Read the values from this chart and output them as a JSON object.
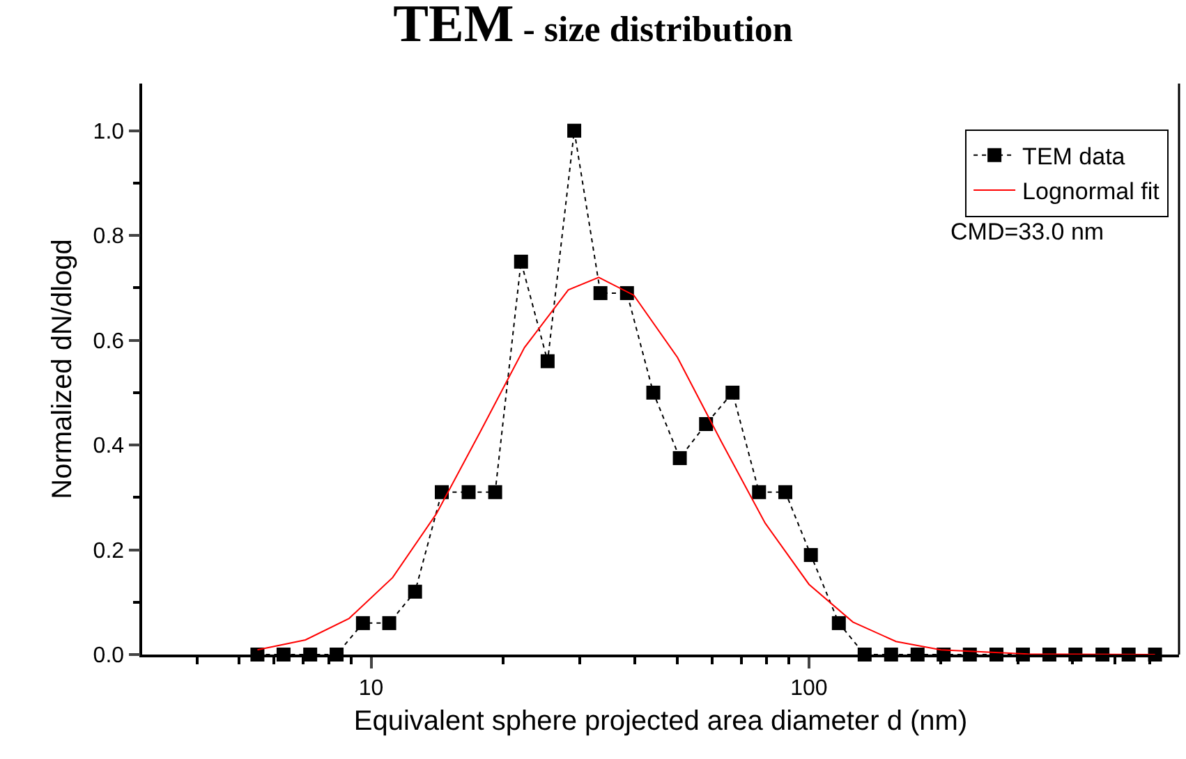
{
  "chart_data": {
    "type": "line",
    "title": "TEM - size distribution",
    "xlabel": "Equivalent sphere projected area diameter d (nm)",
    "ylabel": "Normalized dN/dlogd",
    "log": "x",
    "xlim": [
      3,
      700
    ],
    "ylim": [
      0,
      1.09
    ],
    "xticks": [
      {
        "value": 4,
        "label": null
      },
      {
        "value": 5,
        "label": null
      },
      {
        "value": 6,
        "label": null
      },
      {
        "value": 7,
        "label": null
      },
      {
        "value": 8,
        "label": null
      },
      {
        "value": 9,
        "label": null
      },
      10,
      {
        "value": 20,
        "label": null
      },
      {
        "value": 30,
        "label": null
      },
      {
        "value": 40,
        "label": null
      },
      {
        "value": 50,
        "label": null
      },
      {
        "value": 60,
        "label": null
      },
      {
        "value": 70,
        "label": null
      },
      {
        "value": 80,
        "label": null
      },
      {
        "value": 90,
        "label": null
      },
      100,
      {
        "value": 200,
        "label": null
      },
      {
        "value": 300,
        "label": null
      },
      {
        "value": 400,
        "label": null
      },
      {
        "value": 500,
        "label": null
      },
      {
        "value": 600,
        "label": null
      }
    ],
    "yticks": [
      {
        "value": 0,
        "label": "0.0"
      },
      {
        "value": 0.1,
        "label": null
      },
      {
        "value": 0.2,
        "label": "0.2"
      },
      {
        "value": 0.3,
        "label": null
      },
      {
        "value": 0.4,
        "label": "0.4"
      },
      {
        "value": 0.5,
        "label": null
      },
      {
        "value": 0.6,
        "label": "0.6"
      },
      {
        "value": 0.7,
        "label": null
      },
      {
        "value": 0.8,
        "label": "0.8"
      },
      {
        "value": 0.9,
        "label": null
      },
      {
        "value": 1.0,
        "label": "1.0"
      }
    ],
    "legend": "top right",
    "annotations": [
      "CMD=33.0 nm"
    ],
    "series": [
      {
        "name": "TEM data",
        "color": "#000000",
        "marker": "square",
        "line_style": "dotted",
        "x": [
          5.5,
          6.31,
          7.26,
          8.34,
          9.58,
          11.0,
          12.6,
          14.5,
          16.7,
          19.2,
          22.0,
          25.3,
          29.1,
          33.4,
          38.4,
          44.1,
          50.7,
          58.2,
          66.9,
          76.9,
          88.3,
          101,
          117,
          134,
          154,
          177,
          203,
          233,
          268,
          308,
          354,
          406,
          468,
          537,
          617
        ],
        "values": [
          0,
          0,
          0,
          0,
          0.06,
          0.06,
          0.12,
          0.31,
          0.31,
          0.31,
          0.75,
          0.56,
          1.0,
          0.69,
          0.69,
          0.5,
          0.375,
          0.44,
          0.5,
          0.31,
          0.31,
          0.19,
          0.06,
          0,
          0,
          0,
          0,
          0,
          0,
          0,
          0,
          0,
          0,
          0,
          0
        ]
      },
      {
        "name": "Lognormal fit",
        "color": "#ff0000",
        "marker": "none",
        "line_style": "solid",
        "x": [
          5.5,
          7.08,
          8.91,
          11.2,
          14.1,
          17.8,
          22.4,
          28.2,
          33.1,
          39.8,
          50.1,
          63.1,
          79.4,
          100,
          126,
          158,
          200,
          316,
          617
        ],
        "values": [
          0.009,
          0.028,
          0.069,
          0.147,
          0.269,
          0.427,
          0.586,
          0.696,
          0.72,
          0.686,
          0.567,
          0.406,
          0.251,
          0.134,
          0.062,
          0.025,
          0.009,
          0.001,
          0
        ]
      }
    ]
  }
}
